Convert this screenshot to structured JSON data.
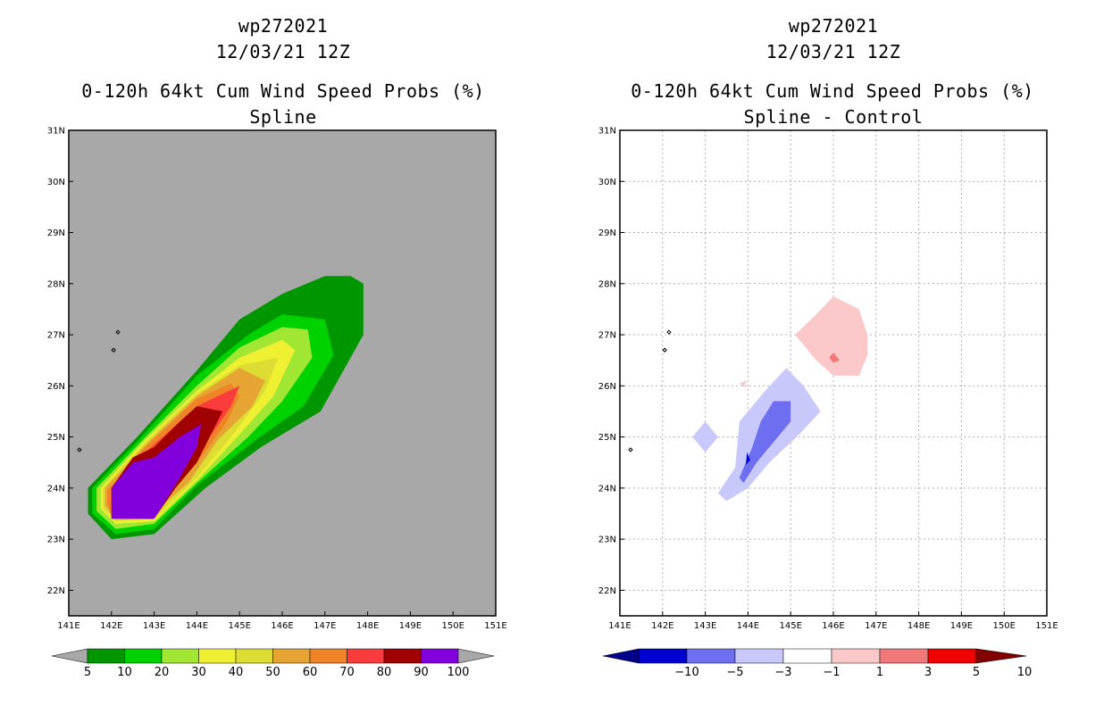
{
  "left": {
    "title1": "wp272021",
    "title2": "12/03/21 12Z",
    "title3": "0-120h 64kt Cum Wind Speed Probs (%)",
    "title4": "Spline"
  },
  "right": {
    "title1": "wp272021",
    "title2": "12/03/21 12Z",
    "title3": "0-120h 64kt Cum Wind Speed Probs (%)",
    "title4": "Spline - Control"
  },
  "colors": {
    "land_gray": "#a8a8a8",
    "frame": "#000000",
    "grid": "#b0b0b0"
  },
  "chart_data": [
    {
      "type": "heatmap",
      "title": "0-120h 64kt Cum Wind Speed Probs (%) Spline",
      "xlim": [
        141,
        151
      ],
      "ylim": [
        21.5,
        31
      ],
      "x_ticks": [
        "141E",
        "142E",
        "143E",
        "144E",
        "145E",
        "146E",
        "147E",
        "148E",
        "149E",
        "150E",
        "151E"
      ],
      "y_ticks": [
        "22N",
        "23N",
        "24N",
        "25N",
        "26N",
        "27N",
        "28N",
        "29N",
        "30N",
        "31N"
      ],
      "legend": {
        "labels": [
          "5",
          "10",
          "20",
          "30",
          "40",
          "50",
          "60",
          "70",
          "80",
          "90",
          "100"
        ],
        "colors": [
          "#009600",
          "#00d200",
          "#a0e632",
          "#f0f032",
          "#dcdc32",
          "#e6a532",
          "#f08228",
          "#fa3c3c",
          "#a00000",
          "#8200dc"
        ],
        "low_color": "#a8a8a8",
        "high_color": "#a8a8a8"
      },
      "contours": [
        {
          "level": 5,
          "color": "#009600",
          "points": [
            [
              141.45,
              23.65
            ],
            [
              141.45,
              24.0
            ],
            [
              142.6,
              25.0
            ],
            [
              144.0,
              26.3
            ],
            [
              145.0,
              27.3
            ],
            [
              146.0,
              27.8
            ],
            [
              147.0,
              28.15
            ],
            [
              147.6,
              28.15
            ],
            [
              147.9,
              28.0
            ],
            [
              147.9,
              27.0
            ],
            [
              146.9,
              25.5
            ],
            [
              145.5,
              24.8
            ],
            [
              144.2,
              24.0
            ],
            [
              143.0,
              23.1
            ],
            [
              142.0,
              23.0
            ],
            [
              141.45,
              23.5
            ]
          ]
        },
        {
          "level": 10,
          "color": "#00d200",
          "points": [
            [
              141.55,
              23.7
            ],
            [
              141.55,
              24.0
            ],
            [
              142.7,
              25.0
            ],
            [
              144.0,
              26.2
            ],
            [
              145.2,
              27.0
            ],
            [
              146.0,
              27.4
            ],
            [
              147.0,
              27.3
            ],
            [
              147.2,
              26.6
            ],
            [
              146.5,
              25.6
            ],
            [
              145.4,
              24.95
            ],
            [
              144.0,
              24.05
            ],
            [
              143.0,
              23.2
            ],
            [
              142.1,
              23.1
            ],
            [
              141.55,
              23.5
            ]
          ]
        },
        {
          "level": 20,
          "color": "#a0e632",
          "points": [
            [
              141.65,
              23.75
            ],
            [
              141.65,
              24.0
            ],
            [
              142.8,
              25.0
            ],
            [
              144.0,
              26.0
            ],
            [
              145.0,
              26.75
            ],
            [
              146.0,
              27.15
            ],
            [
              146.6,
              27.1
            ],
            [
              146.7,
              26.55
            ],
            [
              146.0,
              25.7
            ],
            [
              145.2,
              25.0
            ],
            [
              144.0,
              24.1
            ],
            [
              143.0,
              23.3
            ],
            [
              142.1,
              23.2
            ],
            [
              141.65,
              23.55
            ]
          ]
        },
        {
          "level": 30,
          "color": "#f0f032",
          "points": [
            [
              141.75,
              23.8
            ],
            [
              141.75,
              24.0
            ],
            [
              142.8,
              24.95
            ],
            [
              144.0,
              25.9
            ],
            [
              145.0,
              26.55
            ],
            [
              146.0,
              26.9
            ],
            [
              146.3,
              26.7
            ],
            [
              145.8,
              25.8
            ],
            [
              145.0,
              25.05
            ],
            [
              144.0,
              24.15
            ],
            [
              143.0,
              23.35
            ],
            [
              142.1,
              23.3
            ],
            [
              141.75,
              23.6
            ]
          ]
        },
        {
          "level": 40,
          "color": "#dcdc32",
          "points": [
            [
              141.8,
              23.85
            ],
            [
              141.8,
              24.0
            ],
            [
              142.8,
              24.9
            ],
            [
              144.0,
              25.85
            ],
            [
              145.0,
              26.4
            ],
            [
              145.9,
              26.55
            ],
            [
              145.6,
              25.9
            ],
            [
              144.9,
              25.1
            ],
            [
              144.0,
              24.2
            ],
            [
              143.0,
              23.4
            ],
            [
              142.1,
              23.35
            ],
            [
              141.8,
              23.6
            ]
          ]
        },
        {
          "level": 50,
          "color": "#e6a532",
          "points": [
            [
              141.85,
              23.9
            ],
            [
              141.85,
              24.0
            ],
            [
              142.8,
              24.85
            ],
            [
              144.0,
              25.8
            ],
            [
              145.0,
              26.35
            ],
            [
              145.6,
              26.1
            ],
            [
              145.3,
              25.6
            ],
            [
              144.5,
              24.95
            ],
            [
              143.8,
              24.1
            ],
            [
              142.9,
              23.45
            ],
            [
              142.1,
              23.4
            ],
            [
              141.85,
              23.65
            ]
          ]
        },
        {
          "level": 60,
          "color": "#f08228",
          "points": [
            [
              141.9,
              23.95
            ],
            [
              142.8,
              24.8
            ],
            [
              144.0,
              25.75
            ],
            [
              144.8,
              26.05
            ],
            [
              145.0,
              25.8
            ],
            [
              144.7,
              25.3
            ],
            [
              144.1,
              24.6
            ],
            [
              143.5,
              24.0
            ],
            [
              142.8,
              23.45
            ],
            [
              142.0,
              23.45
            ],
            [
              141.9,
              23.7
            ]
          ]
        },
        {
          "level": 70,
          "color": "#fa3c3c",
          "points": [
            [
              142.0,
              24.0
            ],
            [
              142.8,
              24.7
            ],
            [
              144.0,
              25.6
            ],
            [
              145.0,
              26.0
            ],
            [
              144.8,
              25.6
            ],
            [
              144.3,
              25.0
            ],
            [
              143.7,
              24.3
            ],
            [
              143.0,
              23.5
            ],
            [
              142.1,
              23.45
            ],
            [
              142.0,
              23.7
            ]
          ]
        },
        {
          "level": 80,
          "color": "#a00000",
          "points": [
            [
              142.0,
              24.0
            ],
            [
              142.5,
              24.6
            ],
            [
              143.0,
              24.8
            ],
            [
              143.6,
              25.3
            ],
            [
              144.0,
              25.6
            ],
            [
              144.6,
              25.5
            ],
            [
              144.3,
              25.0
            ],
            [
              144.0,
              24.5
            ],
            [
              143.5,
              24.0
            ],
            [
              143.0,
              23.4
            ],
            [
              142.0,
              23.4
            ]
          ]
        },
        {
          "level": 90,
          "color": "#8200dc",
          "points": [
            [
              142.0,
              24.0
            ],
            [
              142.5,
              24.5
            ],
            [
              143.0,
              24.6
            ],
            [
              143.6,
              25.0
            ],
            [
              144.1,
              25.25
            ],
            [
              144.0,
              24.8
            ],
            [
              143.6,
              24.2
            ],
            [
              143.0,
              23.4
            ],
            [
              142.0,
              23.4
            ]
          ]
        }
      ]
    },
    {
      "type": "heatmap",
      "title": "0-120h 64kt Cum Wind Speed Probs (%) Spline - Control",
      "xlim": [
        141,
        151
      ],
      "ylim": [
        21.5,
        31
      ],
      "x_ticks": [
        "141E",
        "142E",
        "143E",
        "144E",
        "145E",
        "146E",
        "147E",
        "148E",
        "149E",
        "150E",
        "151E"
      ],
      "y_ticks": [
        "22N",
        "23N",
        "24N",
        "25N",
        "26N",
        "27N",
        "28N",
        "29N",
        "30N",
        "31N"
      ],
      "grid": true,
      "legend": {
        "labels": [
          "-10",
          "-5",
          "-3",
          "-1",
          "1",
          "3",
          "5",
          "10"
        ],
        "colors": [
          "#0000d2",
          "#6e6ef0",
          "#c8c8fa",
          "#ffffff",
          "#fac8c8",
          "#f07878",
          "#f00000"
        ],
        "low_color": "#00008c",
        "high_color": "#820000"
      },
      "contours": [
        {
          "level": -1,
          "color": "#c8c8fa",
          "points": [
            [
              143.3,
              23.9
            ],
            [
              143.7,
              24.4
            ],
            [
              143.8,
              25.3
            ],
            [
              144.4,
              25.9
            ],
            [
              144.9,
              26.35
            ],
            [
              145.3,
              26.0
            ],
            [
              145.7,
              25.5
            ],
            [
              145.2,
              25.05
            ],
            [
              144.5,
              24.5
            ],
            [
              144.0,
              24.0
            ],
            [
              143.5,
              23.75
            ]
          ]
        },
        {
          "level": -1,
          "color": "#c8c8fa",
          "points": [
            [
              142.7,
              25.0
            ],
            [
              143.0,
              24.7
            ],
            [
              143.3,
              25.0
            ],
            [
              143.0,
              25.3
            ]
          ]
        },
        {
          "level": -3,
          "color": "#6e6ef0",
          "points": [
            [
              143.8,
              24.2
            ],
            [
              144.1,
              24.8
            ],
            [
              144.3,
              25.3
            ],
            [
              144.6,
              25.7
            ],
            [
              145.0,
              25.7
            ],
            [
              145.0,
              25.3
            ],
            [
              144.6,
              24.9
            ],
            [
              144.2,
              24.5
            ],
            [
              143.9,
              24.1
            ]
          ]
        },
        {
          "level": -5,
          "color": "#0000d2",
          "points": [
            [
              143.95,
              24.45
            ],
            [
              144.05,
              24.55
            ],
            [
              143.98,
              24.7
            ]
          ]
        },
        {
          "level": 1,
          "color": "#fac8c8",
          "points": [
            [
              145.1,
              27.0
            ],
            [
              145.6,
              27.4
            ],
            [
              146.0,
              27.75
            ],
            [
              146.6,
              27.5
            ],
            [
              146.8,
              27.0
            ],
            [
              146.8,
              26.6
            ],
            [
              146.6,
              26.2
            ],
            [
              146.0,
              26.2
            ],
            [
              145.6,
              26.5
            ]
          ]
        },
        {
          "level": 1,
          "color": "#fac8c8",
          "points": [
            [
              143.8,
              26.05
            ],
            [
              143.98,
              26.1
            ],
            [
              143.9,
              25.98
            ]
          ]
        },
        {
          "level": 3,
          "color": "#f07878",
          "points": [
            [
              145.9,
              26.55
            ],
            [
              146.0,
              26.65
            ],
            [
              146.15,
              26.5
            ],
            [
              146.0,
              26.45
            ]
          ]
        }
      ]
    }
  ]
}
